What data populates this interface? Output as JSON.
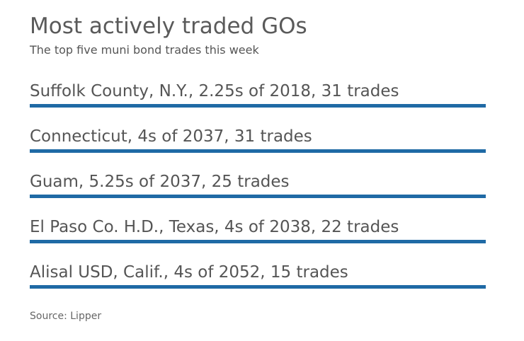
{
  "colors": {
    "bar": "#1f6aa5",
    "text": "#555555"
  },
  "chart_data": {
    "type": "table",
    "title": "Most actively traded GOs",
    "subtitle": "The top five muni bond trades this week",
    "source": "Source: Lipper",
    "rows": [
      "Suffolk County, N.Y., 2.25s of 2018, 31 trades",
      "Connecticut, 4s of 2037, 31 trades",
      "Guam, 5.25s of 2037, 25 trades",
      "El Paso Co. H.D., Texas, 4s of 2038, 22 trades",
      "Alisal USD, Calif., 4s of 2052, 15 trades"
    ]
  }
}
